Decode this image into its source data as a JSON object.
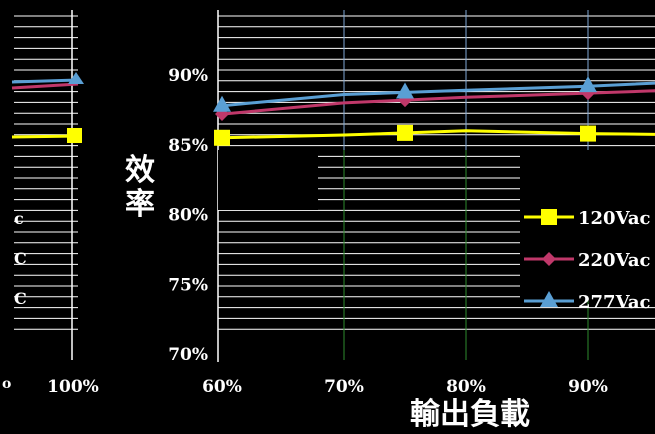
{
  "colors": {
    "background": "#000000",
    "grid_major": "#ffffff",
    "grid_vertical": "#7fa9d6",
    "grid_green": "#2e8b2e",
    "series_120": "#ffff00",
    "series_220": "#c0386a",
    "series_277": "#5a9fd4"
  },
  "chart_data": [
    {
      "type": "line",
      "title": "",
      "xlabel": "輸出負載",
      "ylabel": "效率",
      "x": [
        60,
        70,
        80,
        90,
        100
      ],
      "x_tick_labels": [
        "60%",
        "70%",
        "80%",
        "90%"
      ],
      "y_tick_labels": [
        "70%",
        "75%",
        "80%",
        "85%",
        "90%"
      ],
      "ylim": [
        70,
        92
      ],
      "grid": true,
      "legend_position": "right",
      "series": [
        {
          "name": "120Vac",
          "marker": "square",
          "color": "#ffff00",
          "values": [
            85.5,
            85.7,
            86.0,
            85.8,
            85.7
          ]
        },
        {
          "name": "220Vac",
          "marker": "diamond",
          "color": "#c0386a",
          "values": [
            87.2,
            88.0,
            88.4,
            88.7,
            89.0
          ]
        },
        {
          "name": "277Vac",
          "marker": "triangle",
          "color": "#5a9fd4",
          "values": [
            87.8,
            88.6,
            88.9,
            89.2,
            89.6
          ]
        }
      ]
    }
  ],
  "left_panel": {
    "x_tick_label": "100%",
    "legend_fragments": [
      "c",
      "C",
      "C"
    ]
  },
  "left_edge_label": "o"
}
